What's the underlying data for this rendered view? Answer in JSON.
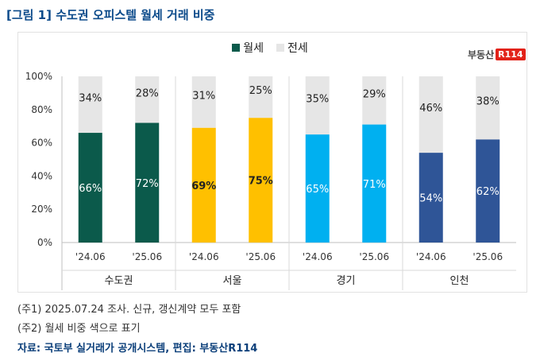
{
  "header": {
    "title": "[그림 1] 수도권 오피스텔 월세 거래 비중"
  },
  "legend": [
    {
      "label": "월세",
      "color": "#0b5a4b"
    },
    {
      "label": "전세",
      "color": "#e6e6e6"
    }
  ],
  "logo": {
    "text": "부동산",
    "box": "R114"
  },
  "chart_data": {
    "type": "bar",
    "stacked": true,
    "title": "",
    "ylim": [
      0,
      100
    ],
    "yticks": [
      "0%",
      "20%",
      "40%",
      "60%",
      "80%",
      "100%"
    ],
    "categories": [
      "'24.06",
      "'25.06",
      "'24.06",
      "'25.06",
      "'24.06",
      "'25.06",
      "'24.06",
      "'25.06"
    ],
    "groups": [
      "수도권",
      "서울",
      "경기",
      "인천"
    ],
    "group_colors": [
      "#0b5a4b",
      "#ffc000",
      "#00b0f0",
      "#2f5597"
    ],
    "group_label_colors": [
      "#ffffff",
      "#222222",
      "#ffffff",
      "#ffffff"
    ],
    "series": [
      {
        "name": "월세",
        "values": [
          66,
          72,
          69,
          75,
          65,
          71,
          54,
          62
        ]
      },
      {
        "name": "전세",
        "values": [
          34,
          28,
          31,
          25,
          35,
          29,
          46,
          38
        ]
      }
    ]
  },
  "notes": {
    "note1": "(주1) 2025.07.24 조사. 신규, 갱신계약 모두 포함",
    "note2": "(주2) 월세 비중 색으로 표기",
    "source": "자료: 국토부 실거래가 공개시스템, 편집: 부동산R114"
  }
}
